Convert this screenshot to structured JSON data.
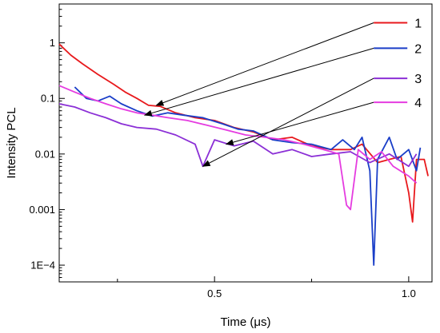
{
  "chart_data": {
    "type": "line",
    "xlabel": "Time (μs)",
    "ylabel": "Intensity PCL",
    "xlim": [
      0.1,
      1.06
    ],
    "ylog": true,
    "ylim": [
      5e-05,
      5
    ],
    "x_ticks": [
      {
        "value": 0.5,
        "label": "0.5"
      },
      {
        "value": 1.0,
        "label": "1.0"
      }
    ],
    "x_minor_ticks": [
      0.25,
      0.75
    ],
    "y_ticks": [
      {
        "value": 1,
        "label": "1"
      },
      {
        "value": 0.1,
        "label": "0.1"
      },
      {
        "value": 0.01,
        "label": "0.01"
      },
      {
        "value": 0.001,
        "label": "0.001"
      },
      {
        "value": 0.0001,
        "label": "1E−4"
      }
    ],
    "grid": false,
    "legend_placement": "top-right",
    "series": [
      {
        "name": "1",
        "color": "#e8191c",
        "points": [
          [
            0.1,
            0.95
          ],
          [
            0.13,
            0.6
          ],
          [
            0.16,
            0.42
          ],
          [
            0.2,
            0.27
          ],
          [
            0.24,
            0.18
          ],
          [
            0.27,
            0.13
          ],
          [
            0.3,
            0.1
          ],
          [
            0.33,
            0.075
          ],
          [
            0.36,
            0.072
          ],
          [
            0.4,
            0.055
          ],
          [
            0.45,
            0.045
          ],
          [
            0.5,
            0.04
          ],
          [
            0.55,
            0.03
          ],
          [
            0.6,
            0.025
          ],
          [
            0.65,
            0.018
          ],
          [
            0.7,
            0.02
          ],
          [
            0.75,
            0.014
          ],
          [
            0.8,
            0.012
          ],
          [
            0.85,
            0.012
          ],
          [
            0.88,
            0.015
          ],
          [
            0.92,
            0.007
          ],
          [
            0.95,
            0.008
          ],
          [
            0.98,
            0.009
          ],
          [
            1.0,
            0.002
          ],
          [
            1.01,
            0.0006
          ],
          [
            1.02,
            0.008
          ],
          [
            1.04,
            0.008
          ],
          [
            1.05,
            0.004
          ]
        ]
      },
      {
        "name": "2",
        "color": "#1a3ec8",
        "points": [
          [
            0.14,
            0.16
          ],
          [
            0.17,
            0.1
          ],
          [
            0.2,
            0.09
          ],
          [
            0.23,
            0.11
          ],
          [
            0.26,
            0.08
          ],
          [
            0.3,
            0.06
          ],
          [
            0.34,
            0.048
          ],
          [
            0.38,
            0.055
          ],
          [
            0.42,
            0.05
          ],
          [
            0.47,
            0.045
          ],
          [
            0.52,
            0.035
          ],
          [
            0.56,
            0.028
          ],
          [
            0.6,
            0.026
          ],
          [
            0.65,
            0.018
          ],
          [
            0.7,
            0.016
          ],
          [
            0.75,
            0.015
          ],
          [
            0.8,
            0.012
          ],
          [
            0.83,
            0.018
          ],
          [
            0.86,
            0.012
          ],
          [
            0.88,
            0.02
          ],
          [
            0.9,
            0.005
          ],
          [
            0.91,
            0.0001
          ],
          [
            0.92,
            0.008
          ],
          [
            0.95,
            0.02
          ],
          [
            0.97,
            0.008
          ],
          [
            1.0,
            0.012
          ],
          [
            1.02,
            0.005
          ],
          [
            1.03,
            0.013
          ]
        ]
      },
      {
        "name": "3",
        "color": "#8b2fd6",
        "points": [
          [
            0.1,
            0.08
          ],
          [
            0.14,
            0.07
          ],
          [
            0.18,
            0.055
          ],
          [
            0.22,
            0.045
          ],
          [
            0.26,
            0.035
          ],
          [
            0.3,
            0.03
          ],
          [
            0.35,
            0.028
          ],
          [
            0.4,
            0.022
          ],
          [
            0.45,
            0.015
          ],
          [
            0.47,
            0.006
          ],
          [
            0.5,
            0.018
          ],
          [
            0.55,
            0.014
          ],
          [
            0.6,
            0.017
          ],
          [
            0.65,
            0.01
          ],
          [
            0.7,
            0.012
          ],
          [
            0.75,
            0.009
          ],
          [
            0.8,
            0.01
          ],
          [
            0.85,
            0.011
          ],
          [
            0.9,
            0.007
          ],
          [
            0.95,
            0.01
          ],
          [
            1.0,
            0.006
          ],
          [
            1.02,
            0.01
          ]
        ]
      },
      {
        "name": "4",
        "color": "#e53ce0",
        "points": [
          [
            0.1,
            0.17
          ],
          [
            0.14,
            0.13
          ],
          [
            0.18,
            0.1
          ],
          [
            0.22,
            0.08
          ],
          [
            0.26,
            0.065
          ],
          [
            0.3,
            0.055
          ],
          [
            0.34,
            0.05
          ],
          [
            0.38,
            0.045
          ],
          [
            0.43,
            0.04
          ],
          [
            0.48,
            0.033
          ],
          [
            0.53,
            0.027
          ],
          [
            0.58,
            0.022
          ],
          [
            0.63,
            0.02
          ],
          [
            0.68,
            0.018
          ],
          [
            0.73,
            0.015
          ],
          [
            0.78,
            0.012
          ],
          [
            0.82,
            0.01
          ],
          [
            0.84,
            0.0012
          ],
          [
            0.85,
            0.001
          ],
          [
            0.87,
            0.012
          ],
          [
            0.9,
            0.008
          ],
          [
            0.93,
            0.011
          ],
          [
            0.96,
            0.006
          ],
          [
            1.0,
            0.004
          ],
          [
            1.02,
            0.003
          ]
        ]
      }
    ],
    "annotations": [
      {
        "series": "1",
        "from": [
          0.91,
          2.3
        ],
        "to": [
          0.35,
          0.075
        ]
      },
      {
        "series": "2",
        "from": [
          0.91,
          0.8
        ],
        "to": [
          0.32,
          0.05
        ]
      },
      {
        "series": "3",
        "from": [
          0.91,
          0.23
        ],
        "to": [
          0.47,
          0.006
        ]
      },
      {
        "series": "4",
        "from": [
          0.91,
          0.085
        ],
        "to": [
          0.53,
          0.015
        ]
      }
    ]
  }
}
